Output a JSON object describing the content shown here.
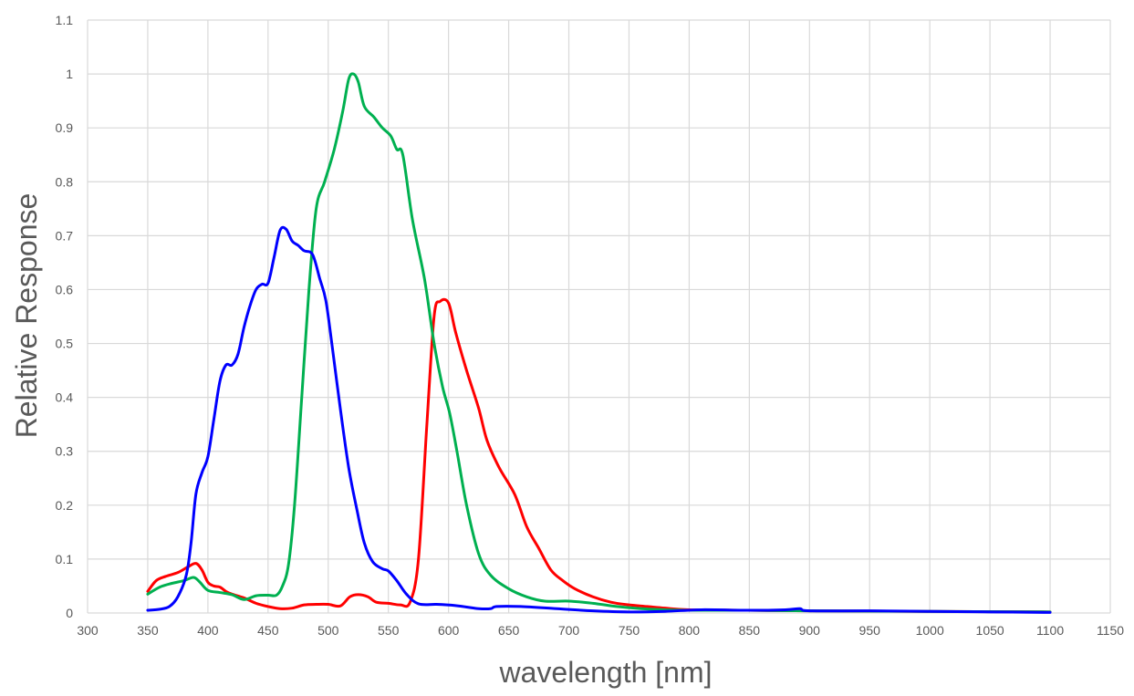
{
  "chart_data": {
    "type": "line",
    "title": "",
    "xlabel": "wavelength [nm]",
    "ylabel": "Relative Response",
    "xlim": [
      300,
      1150
    ],
    "ylim": [
      0,
      1.1
    ],
    "x_ticks": [
      "300",
      "350",
      "400",
      "450",
      "500",
      "550",
      "600",
      "650",
      "700",
      "750",
      "800",
      "850",
      "900",
      "950",
      "1000",
      "1050",
      "1100",
      "1150"
    ],
    "y_ticks": [
      "0",
      "0.1",
      "0.2",
      "0.3",
      "0.4",
      "0.5",
      "0.6",
      "0.7",
      "0.8",
      "0.9",
      "1",
      "1.1"
    ],
    "grid": true,
    "legend": "none",
    "series": [
      {
        "color": "#ff0000",
        "points": [
          [
            350,
            0.04
          ],
          [
            357,
            0.06
          ],
          [
            365,
            0.068
          ],
          [
            375,
            0.075
          ],
          [
            383,
            0.085
          ],
          [
            390,
            0.092
          ],
          [
            395,
            0.08
          ],
          [
            400,
            0.057
          ],
          [
            405,
            0.05
          ],
          [
            410,
            0.048
          ],
          [
            415,
            0.04
          ],
          [
            420,
            0.035
          ],
          [
            430,
            0.028
          ],
          [
            440,
            0.018
          ],
          [
            450,
            0.012
          ],
          [
            460,
            0.008
          ],
          [
            470,
            0.009
          ],
          [
            480,
            0.015
          ],
          [
            490,
            0.016
          ],
          [
            500,
            0.016
          ],
          [
            510,
            0.013
          ],
          [
            518,
            0.03
          ],
          [
            525,
            0.034
          ],
          [
            533,
            0.03
          ],
          [
            540,
            0.02
          ],
          [
            550,
            0.018
          ],
          [
            560,
            0.015
          ],
          [
            568,
            0.02
          ],
          [
            575,
            0.1
          ],
          [
            582,
            0.35
          ],
          [
            588,
            0.55
          ],
          [
            593,
            0.578
          ],
          [
            600,
            0.575
          ],
          [
            606,
            0.52
          ],
          [
            615,
            0.45
          ],
          [
            625,
            0.38
          ],
          [
            632,
            0.32
          ],
          [
            642,
            0.27
          ],
          [
            655,
            0.22
          ],
          [
            665,
            0.16
          ],
          [
            675,
            0.12
          ],
          [
            685,
            0.08
          ],
          [
            695,
            0.06
          ],
          [
            705,
            0.045
          ],
          [
            720,
            0.03
          ],
          [
            735,
            0.02
          ],
          [
            750,
            0.015
          ],
          [
            765,
            0.012
          ],
          [
            780,
            0.009
          ],
          [
            800,
            0.006
          ],
          [
            850,
            0.005
          ],
          [
            900,
            0.004
          ],
          [
            1000,
            0.003
          ],
          [
            1100,
            0.002
          ]
        ]
      },
      {
        "color": "#00b050",
        "points": [
          [
            350,
            0.035
          ],
          [
            360,
            0.048
          ],
          [
            370,
            0.055
          ],
          [
            380,
            0.06
          ],
          [
            388,
            0.066
          ],
          [
            393,
            0.058
          ],
          [
            400,
            0.042
          ],
          [
            410,
            0.038
          ],
          [
            420,
            0.034
          ],
          [
            430,
            0.025
          ],
          [
            440,
            0.032
          ],
          [
            450,
            0.033
          ],
          [
            457,
            0.033
          ],
          [
            462,
            0.05
          ],
          [
            467,
            0.09
          ],
          [
            472,
            0.2
          ],
          [
            478,
            0.4
          ],
          [
            484,
            0.6
          ],
          [
            490,
            0.75
          ],
          [
            497,
            0.8
          ],
          [
            505,
            0.86
          ],
          [
            512,
            0.93
          ],
          [
            517,
            0.99
          ],
          [
            521,
            1.0
          ],
          [
            525,
            0.985
          ],
          [
            530,
            0.94
          ],
          [
            538,
            0.92
          ],
          [
            545,
            0.9
          ],
          [
            552,
            0.885
          ],
          [
            557,
            0.86
          ],
          [
            562,
            0.85
          ],
          [
            570,
            0.73
          ],
          [
            580,
            0.62
          ],
          [
            588,
            0.5
          ],
          [
            595,
            0.42
          ],
          [
            601,
            0.37
          ],
          [
            607,
            0.3
          ],
          [
            615,
            0.2
          ],
          [
            625,
            0.11
          ],
          [
            635,
            0.07
          ],
          [
            650,
            0.045
          ],
          [
            665,
            0.03
          ],
          [
            680,
            0.022
          ],
          [
            700,
            0.022
          ],
          [
            720,
            0.018
          ],
          [
            740,
            0.012
          ],
          [
            760,
            0.008
          ],
          [
            780,
            0.006
          ],
          [
            800,
            0.005
          ],
          [
            850,
            0.005
          ],
          [
            900,
            0.004
          ],
          [
            1000,
            0.003
          ],
          [
            1100,
            0.002
          ]
        ]
      },
      {
        "color": "#0000ff",
        "points": [
          [
            350,
            0.005
          ],
          [
            360,
            0.007
          ],
          [
            368,
            0.012
          ],
          [
            375,
            0.03
          ],
          [
            382,
            0.07
          ],
          [
            386,
            0.13
          ],
          [
            390,
            0.22
          ],
          [
            395,
            0.26
          ],
          [
            400,
            0.29
          ],
          [
            405,
            0.36
          ],
          [
            410,
            0.43
          ],
          [
            415,
            0.46
          ],
          [
            420,
            0.46
          ],
          [
            425,
            0.48
          ],
          [
            430,
            0.53
          ],
          [
            435,
            0.57
          ],
          [
            440,
            0.6
          ],
          [
            445,
            0.61
          ],
          [
            450,
            0.612
          ],
          [
            455,
            0.66
          ],
          [
            460,
            0.71
          ],
          [
            465,
            0.712
          ],
          [
            470,
            0.69
          ],
          [
            475,
            0.682
          ],
          [
            480,
            0.672
          ],
          [
            487,
            0.665
          ],
          [
            493,
            0.62
          ],
          [
            498,
            0.58
          ],
          [
            503,
            0.5
          ],
          [
            510,
            0.38
          ],
          [
            517,
            0.27
          ],
          [
            524,
            0.19
          ],
          [
            530,
            0.13
          ],
          [
            537,
            0.095
          ],
          [
            545,
            0.082
          ],
          [
            550,
            0.078
          ],
          [
            557,
            0.06
          ],
          [
            565,
            0.035
          ],
          [
            575,
            0.017
          ],
          [
            590,
            0.016
          ],
          [
            605,
            0.014
          ],
          [
            615,
            0.011
          ],
          [
            625,
            0.008
          ],
          [
            635,
            0.008
          ],
          [
            640,
            0.012
          ],
          [
            660,
            0.012
          ],
          [
            690,
            0.008
          ],
          [
            720,
            0.004
          ],
          [
            750,
            0.002
          ],
          [
            780,
            0.003
          ],
          [
            810,
            0.006
          ],
          [
            850,
            0.005
          ],
          [
            880,
            0.006
          ],
          [
            892,
            0.008
          ],
          [
            900,
            0.004
          ],
          [
            950,
            0.004
          ],
          [
            1000,
            0.003
          ],
          [
            1050,
            0.002
          ],
          [
            1100,
            0.001
          ]
        ]
      }
    ]
  }
}
